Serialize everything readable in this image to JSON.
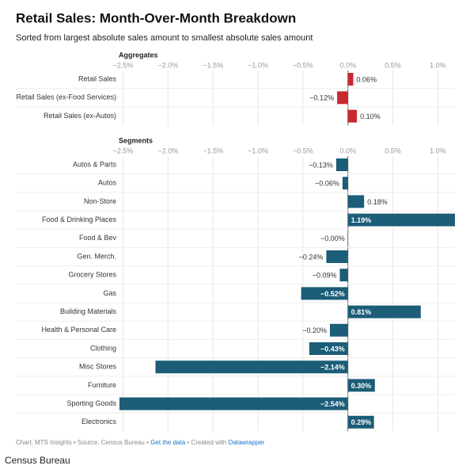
{
  "header": {
    "title": "Retail Sales: Month-Over-Month Breakdown",
    "subtitle": "Sorted from largest absolute sales amount to smallest absolute sales amount"
  },
  "chart_data": [
    {
      "type": "bar",
      "orientation": "horizontal",
      "title": "Aggregates",
      "color": "#c62a2f",
      "categories": [
        "Retail Sales",
        "Retail Sales (ex-Food Services)",
        "Retail Sales (ex-Autos)"
      ],
      "values": [
        0.06,
        -0.12,
        0.1
      ],
      "value_labels": [
        "0.06%",
        "−0.12%",
        "0.10%"
      ],
      "xlim": [
        -2.54,
        1.19
      ],
      "xticks": [
        {
          "value": -2.5,
          "label": "−2.5%"
        },
        {
          "value": -2,
          "label": "−2.0%"
        },
        {
          "value": -1.5,
          "label": "−1.5%"
        },
        {
          "value": -1,
          "label": "−1.0%"
        },
        {
          "value": -0.5,
          "label": "−0.5%"
        },
        {
          "value": 0,
          "label": "0.0%"
        },
        {
          "value": 0.5,
          "label": "0.5%"
        },
        {
          "value": 1,
          "label": "1.0%"
        }
      ],
      "grid": true
    },
    {
      "type": "bar",
      "orientation": "horizontal",
      "title": "Segments",
      "color": "#1c5d78",
      "categories": [
        "Autos & Parts",
        "Autos",
        "Non-Store",
        "Food & Drinking Places",
        "Food & Bev",
        "Gen. Merch.",
        "Grocery Stores",
        "Gas",
        "Building Materials",
        "Health & Personal Care",
        "Clothing",
        "Misc Stores",
        "Furniture",
        "Sporting Goods",
        "Electronics"
      ],
      "values": [
        -0.13,
        -0.06,
        0.18,
        1.19,
        0,
        -0.24,
        -0.09,
        -0.52,
        0.81,
        -0.2,
        -0.43,
        -2.14,
        0.3,
        -2.54,
        0.29
      ],
      "value_labels": [
        "−0.13%",
        "−0.06%",
        "0.18%",
        "1.19%",
        "−0.00%",
        "−0.24%",
        "−0.09%",
        "−0.52%",
        "0.81%",
        "−0.20%",
        "−0.43%",
        "−2.14%",
        "0.30%",
        "−2.54%",
        "0.29%"
      ],
      "xlim": [
        -2.54,
        1.19
      ],
      "xticks": [
        {
          "value": -2.5,
          "label": "−2.5%"
        },
        {
          "value": -2,
          "label": "−2.0%"
        },
        {
          "value": -1.5,
          "label": "−1.5%"
        },
        {
          "value": -1,
          "label": "−1.0%"
        },
        {
          "value": -0.5,
          "label": "−0.5%"
        },
        {
          "value": 0,
          "label": "0.0%"
        },
        {
          "value": 0.5,
          "label": "0.5%"
        },
        {
          "value": 1,
          "label": "1.0%"
        }
      ],
      "grid": true
    }
  ],
  "footer": {
    "credit": "Chart: MTS Insights • Source: Census Bureau •",
    "link": "Get the data",
    "created": "• Created with",
    "tool": "Datawrapper",
    "caption": "Census Bureau"
  }
}
